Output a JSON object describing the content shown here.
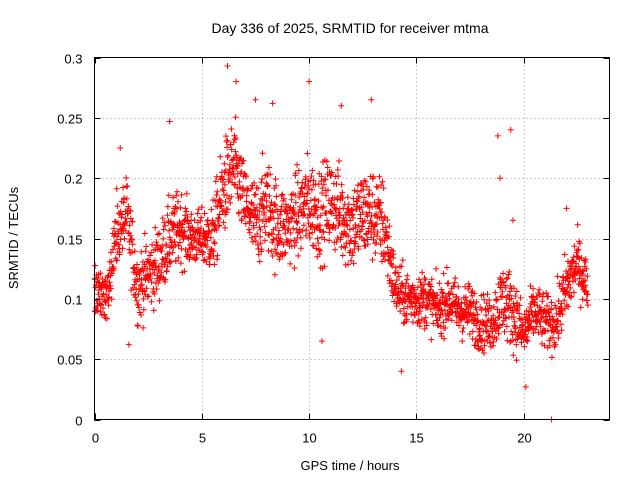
{
  "chart_data": {
    "type": "scatter",
    "title": "Day 336 of 2025, SRMTID for receiver mtma",
    "xlabel": "GPS time / hours",
    "ylabel": "SRMTID / TECUs",
    "xlim": [
      0,
      24
    ],
    "ylim": [
      0,
      0.3
    ],
    "xticks": [
      0,
      5,
      10,
      15,
      20
    ],
    "xtick_labels": [
      "0",
      "5",
      "10",
      "15",
      "20"
    ],
    "yticks": [
      0,
      0.05,
      0.1,
      0.15,
      0.2,
      0.25,
      0.3
    ],
    "ytick_labels": [
      "0",
      "0.05",
      "0.1",
      "0.15",
      "0.2",
      "0.25",
      "0.3"
    ],
    "grid": true,
    "marker": "plus",
    "series": [
      {
        "name": "SRMTID",
        "color": "#ff0000",
        "envelope_hours": [
          0,
          0.5,
          1,
          1.5,
          2,
          2.5,
          3,
          3.5,
          4,
          4.5,
          5,
          5.5,
          6,
          6.5,
          7,
          7.5,
          8,
          8.5,
          9,
          9.5,
          10,
          10.5,
          11,
          11.5,
          12,
          12.5,
          13,
          13.5,
          14,
          14.5,
          15,
          15.5,
          16,
          16.5,
          17,
          17.5,
          18,
          18.5,
          19,
          19.5,
          20,
          20.5,
          21,
          21.5,
          22,
          22.5,
          23
        ],
        "envelope_mean": [
          0.11,
          0.1,
          0.15,
          0.17,
          0.11,
          0.12,
          0.13,
          0.15,
          0.16,
          0.15,
          0.15,
          0.15,
          0.19,
          0.21,
          0.18,
          0.16,
          0.18,
          0.16,
          0.16,
          0.17,
          0.18,
          0.17,
          0.18,
          0.17,
          0.16,
          0.17,
          0.17,
          0.16,
          0.11,
          0.1,
          0.1,
          0.1,
          0.09,
          0.1,
          0.09,
          0.09,
          0.08,
          0.08,
          0.1,
          0.09,
          0.07,
          0.09,
          0.08,
          0.08,
          0.11,
          0.13,
          0.11
        ],
        "envelope_spread": [
          0.03,
          0.03,
          0.04,
          0.04,
          0.04,
          0.04,
          0.04,
          0.04,
          0.04,
          0.03,
          0.03,
          0.04,
          0.05,
          0.05,
          0.04,
          0.05,
          0.05,
          0.05,
          0.04,
          0.05,
          0.05,
          0.05,
          0.05,
          0.05,
          0.05,
          0.05,
          0.05,
          0.05,
          0.03,
          0.03,
          0.03,
          0.03,
          0.03,
          0.03,
          0.03,
          0.03,
          0.03,
          0.03,
          0.04,
          0.04,
          0.03,
          0.03,
          0.03,
          0.03,
          0.04,
          0.03,
          0.03
        ],
        "highlights": [
          {
            "x": 6.2,
            "y": 0.293
          },
          {
            "x": 6.6,
            "y": 0.28
          },
          {
            "x": 7.5,
            "y": 0.265
          },
          {
            "x": 8.3,
            "y": 0.262
          },
          {
            "x": 10.0,
            "y": 0.28
          },
          {
            "x": 11.5,
            "y": 0.26
          },
          {
            "x": 12.9,
            "y": 0.265
          },
          {
            "x": 3.5,
            "y": 0.247
          },
          {
            "x": 1.2,
            "y": 0.225
          },
          {
            "x": 18.8,
            "y": 0.235
          },
          {
            "x": 19.4,
            "y": 0.24
          },
          {
            "x": 18.9,
            "y": 0.2
          },
          {
            "x": 19.5,
            "y": 0.165
          },
          {
            "x": 22.0,
            "y": 0.175
          },
          {
            "x": 20.1,
            "y": 0.027
          },
          {
            "x": 21.3,
            "y": 0.0
          },
          {
            "x": 10.6,
            "y": 0.065
          },
          {
            "x": 14.3,
            "y": 0.04
          },
          {
            "x": 1.6,
            "y": 0.062
          }
        ]
      }
    ]
  }
}
